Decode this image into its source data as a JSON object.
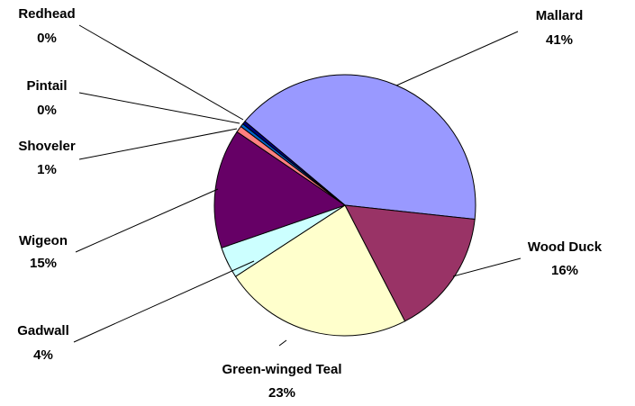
{
  "chart_data": {
    "type": "pie",
    "categories": [
      "Mallard",
      "Wood Duck",
      "Green-winged Teal",
      "Gadwall",
      "Wigeon",
      "Shoveler",
      "Pintail",
      "Redhead"
    ],
    "values": [
      40.6,
      15.7,
      23.4,
      3.9,
      14.8,
      0.8,
      0.4,
      0.4
    ],
    "value_labels": [
      "41%",
      "16%",
      "23%",
      "4%",
      "15%",
      "1%",
      "0%",
      "0%"
    ],
    "colors": [
      "#9999ff",
      "#993366",
      "#ffffcc",
      "#ccffff",
      "#660066",
      "#ff8080",
      "#0066cc",
      "#000080"
    ]
  }
}
